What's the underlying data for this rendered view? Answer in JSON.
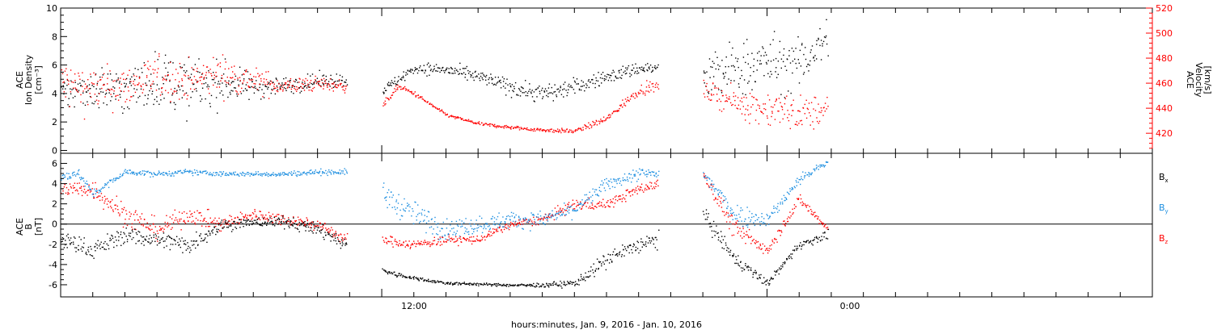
{
  "figure": {
    "xlabel": "hours:minutes, Jan.  9, 2016 - Jan. 10, 2016",
    "xtick_labels": [
      "12:00",
      "0:00"
    ]
  },
  "colors": {
    "black": "#000000",
    "red": "#ff0000",
    "blue": "#1e8fe0",
    "axis": "#000000"
  },
  "chart_data": [
    {
      "type": "scatter",
      "panel": "plasma",
      "ylabel_left": [
        "ACE",
        "Ion Density",
        "[cm⁻³]"
      ],
      "ylabel_right": [
        "ACE",
        "Velocity",
        "[km/s]"
      ],
      "x_unit": "hours since 2016-01-09 00:00",
      "xlim": [
        2.0,
        36.0
      ],
      "ylim_left": [
        -0.2,
        10.0
      ],
      "ylim_right": [
        404,
        520
      ],
      "yticks_left": [
        0,
        2,
        4,
        6,
        8,
        10
      ],
      "yticks_right": [
        420,
        440,
        460,
        480,
        500,
        520
      ],
      "gaps": [
        [
          10.9,
          12.0
        ],
        [
          20.6,
          22.0
        ]
      ],
      "series": [
        {
          "name": "Ion Density",
          "axis": "left",
          "color": "black",
          "profile": [
            [
              2.0,
              4.0
            ],
            [
              3.0,
              4.5
            ],
            [
              4.0,
              4.2
            ],
            [
              5.0,
              5.0
            ],
            [
              6.0,
              4.5
            ],
            [
              7.0,
              4.8
            ],
            [
              8.0,
              4.5
            ],
            [
              9.0,
              4.6
            ],
            [
              10.0,
              4.9
            ],
            [
              10.9,
              5.0
            ],
            [
              12.0,
              4.2
            ],
            [
              13.0,
              5.8
            ],
            [
              14.0,
              5.7
            ],
            [
              15.0,
              5.2
            ],
            [
              16.0,
              4.5
            ],
            [
              17.0,
              4.0
            ],
            [
              18.0,
              4.5
            ],
            [
              19.0,
              5.2
            ],
            [
              20.0,
              5.8
            ],
            [
              20.6,
              5.8
            ],
            [
              22.0,
              5.0
            ],
            [
              23.0,
              5.8
            ],
            [
              24.0,
              6.2
            ],
            [
              25.0,
              6.0
            ],
            [
              25.9,
              8.0
            ]
          ],
          "scatter": [
            [
              2.0,
              2.0
            ],
            [
              4.0,
              3.0
            ],
            [
              6.0,
              3.5
            ],
            [
              8.0,
              1.5
            ],
            [
              9.0,
              1.0
            ],
            [
              10.9,
              0.8
            ],
            [
              12.0,
              0.6
            ],
            [
              15.0,
              0.8
            ],
            [
              17.0,
              1.2
            ],
            [
              19.0,
              0.8
            ],
            [
              20.6,
              0.8
            ],
            [
              22.0,
              3.0
            ],
            [
              24.0,
              3.5
            ],
            [
              25.9,
              2.5
            ]
          ],
          "end_hour": 25.9
        },
        {
          "name": "Velocity",
          "axis": "right",
          "color": "red",
          "profile": [
            [
              2.0,
              460
            ],
            [
              3.0,
              455
            ],
            [
              4.0,
              458
            ],
            [
              5.0,
              465
            ],
            [
              6.0,
              462
            ],
            [
              7.0,
              468
            ],
            [
              8.0,
              462
            ],
            [
              9.0,
              458
            ],
            [
              10.0,
              460
            ],
            [
              10.9,
              458
            ],
            [
              12.0,
              442
            ],
            [
              12.5,
              458
            ],
            [
              13.0,
              452
            ],
            [
              14.0,
              435
            ],
            [
              15.0,
              428
            ],
            [
              16.0,
              425
            ],
            [
              17.0,
              423
            ],
            [
              18.0,
              422
            ],
            [
              19.0,
              432
            ],
            [
              20.0,
              455
            ],
            [
              20.6,
              458
            ],
            [
              22.0,
              455
            ],
            [
              23.0,
              445
            ],
            [
              24.0,
              440
            ],
            [
              25.0,
              436
            ],
            [
              25.9,
              438
            ]
          ],
          "scatter": [
            [
              2.0,
              38
            ],
            [
              3.0,
              30
            ],
            [
              5.0,
              28
            ],
            [
              7.0,
              26
            ],
            [
              9.0,
              12
            ],
            [
              10.9,
              8
            ],
            [
              12.0,
              4
            ],
            [
              14.0,
              2
            ],
            [
              18.0,
              3
            ],
            [
              20.6,
              8
            ],
            [
              22.0,
              12
            ],
            [
              24.0,
              25
            ],
            [
              25.9,
              22
            ]
          ],
          "end_hour": 25.9
        }
      ]
    },
    {
      "type": "scatter",
      "panel": "magnetic_field",
      "ylabel_left": [
        "ACE",
        "B",
        "[nT]"
      ],
      "x_unit": "hours since 2016-01-09 00:00",
      "xlim": [
        2.0,
        36.0
      ],
      "ylim_left": [
        -7.2,
        7.0
      ],
      "yticks_left": [
        -6,
        -4,
        -2,
        0,
        2,
        4,
        6
      ],
      "zero_line": true,
      "gaps": [
        [
          10.9,
          12.0
        ],
        [
          20.6,
          22.0
        ]
      ],
      "series": [
        {
          "name": "B",
          "subscript": "x",
          "color": "black",
          "profile": [
            [
              2.0,
              -1.5
            ],
            [
              3.0,
              -2.5
            ],
            [
              4.0,
              -1.0
            ],
            [
              5.0,
              -1.5
            ],
            [
              6.0,
              -2.0
            ],
            [
              7.0,
              0.0
            ],
            [
              8.0,
              0.2
            ],
            [
              9.0,
              0.3
            ],
            [
              10.0,
              -0.5
            ],
            [
              10.9,
              -2.0
            ],
            [
              12.0,
              -4.5
            ],
            [
              12.5,
              -5.0
            ],
            [
              13.0,
              -5.3
            ],
            [
              14.0,
              -5.8
            ],
            [
              15.0,
              -5.9
            ],
            [
              16.0,
              -6.0
            ],
            [
              17.0,
              -6.0
            ],
            [
              18.0,
              -5.8
            ],
            [
              19.0,
              -3.5
            ],
            [
              20.0,
              -2.0
            ],
            [
              20.6,
              -1.5
            ],
            [
              22.0,
              1.0
            ],
            [
              23.0,
              -3.5
            ],
            [
              24.0,
              -5.8
            ],
            [
              25.0,
              -2.0
            ],
            [
              25.9,
              -1.0
            ]
          ],
          "scatter": [
            [
              2.0,
              1.5
            ],
            [
              4.0,
              1.5
            ],
            [
              6.0,
              1.5
            ],
            [
              8.0,
              0.8
            ],
            [
              10.9,
              1.2
            ],
            [
              12.0,
              0.5
            ],
            [
              13.0,
              0.3
            ],
            [
              16.0,
              0.2
            ],
            [
              18.0,
              0.6
            ],
            [
              19.0,
              1.5
            ],
            [
              20.6,
              1.5
            ],
            [
              22.0,
              1.5
            ],
            [
              23.0,
              1.2
            ],
            [
              24.0,
              0.6
            ],
            [
              25.9,
              0.8
            ]
          ],
          "end_hour": 25.9
        },
        {
          "name": "B",
          "subscript": "y",
          "color": "blue",
          "profile": [
            [
              2.0,
              4.5
            ],
            [
              2.5,
              5.2
            ],
            [
              3.0,
              3.0
            ],
            [
              4.0,
              5.2
            ],
            [
              5.0,
              5.0
            ],
            [
              6.0,
              5.2
            ],
            [
              7.0,
              5.0
            ],
            [
              8.0,
              5.0
            ],
            [
              9.0,
              5.0
            ],
            [
              10.0,
              5.2
            ],
            [
              10.9,
              5.2
            ],
            [
              12.0,
              3.0
            ],
            [
              12.5,
              2.0
            ],
            [
              13.0,
              1.0
            ],
            [
              14.0,
              -0.5
            ],
            [
              15.0,
              0.0
            ],
            [
              16.0,
              0.5
            ],
            [
              17.0,
              0.5
            ],
            [
              18.0,
              1.5
            ],
            [
              19.0,
              4.0
            ],
            [
              20.0,
              5.0
            ],
            [
              20.6,
              5.0
            ],
            [
              22.0,
              5.0
            ],
            [
              23.0,
              1.0
            ],
            [
              24.0,
              0.5
            ],
            [
              25.0,
              4.5
            ],
            [
              25.9,
              6.2
            ]
          ],
          "scatter": [
            [
              2.0,
              0.8
            ],
            [
              4.0,
              0.5
            ],
            [
              8.0,
              0.4
            ],
            [
              10.9,
              0.5
            ],
            [
              12.0,
              2.0
            ],
            [
              13.0,
              2.2
            ],
            [
              15.0,
              1.5
            ],
            [
              18.0,
              1.2
            ],
            [
              20.6,
              1.0
            ],
            [
              22.0,
              1.0
            ],
            [
              23.0,
              2.0
            ],
            [
              24.0,
              1.2
            ],
            [
              25.9,
              0.6
            ]
          ],
          "end_hour": 25.9
        },
        {
          "name": "B",
          "subscript": "z",
          "color": "red",
          "profile": [
            [
              2.0,
              3.5
            ],
            [
              3.0,
              3.5
            ],
            [
              4.0,
              1.0
            ],
            [
              5.0,
              -0.5
            ],
            [
              6.0,
              1.0
            ],
            [
              7.0,
              0.0
            ],
            [
              8.0,
              1.0
            ],
            [
              9.0,
              0.5
            ],
            [
              10.0,
              0.0
            ],
            [
              10.9,
              -1.5
            ],
            [
              12.0,
              -1.5
            ],
            [
              13.0,
              -2.0
            ],
            [
              14.0,
              -1.5
            ],
            [
              15.0,
              -1.5
            ],
            [
              16.0,
              0.0
            ],
            [
              17.0,
              0.5
            ],
            [
              18.0,
              2.0
            ],
            [
              19.0,
              2.0
            ],
            [
              20.0,
              3.5
            ],
            [
              20.6,
              4.0
            ],
            [
              22.0,
              5.0
            ],
            [
              23.0,
              -0.5
            ],
            [
              24.0,
              -2.5
            ],
            [
              25.0,
              2.5
            ],
            [
              25.9,
              -0.5
            ]
          ],
          "scatter": [
            [
              2.0,
              1.5
            ],
            [
              4.0,
              2.0
            ],
            [
              6.0,
              1.5
            ],
            [
              8.0,
              1.0
            ],
            [
              10.9,
              1.0
            ],
            [
              12.0,
              0.8
            ],
            [
              14.0,
              0.8
            ],
            [
              16.0,
              0.6
            ],
            [
              18.0,
              1.0
            ],
            [
              20.6,
              0.8
            ],
            [
              22.0,
              1.0
            ],
            [
              23.0,
              1.8
            ],
            [
              24.0,
              1.0
            ],
            [
              25.9,
              0.8
            ]
          ],
          "end_hour": 25.9
        }
      ]
    }
  ]
}
